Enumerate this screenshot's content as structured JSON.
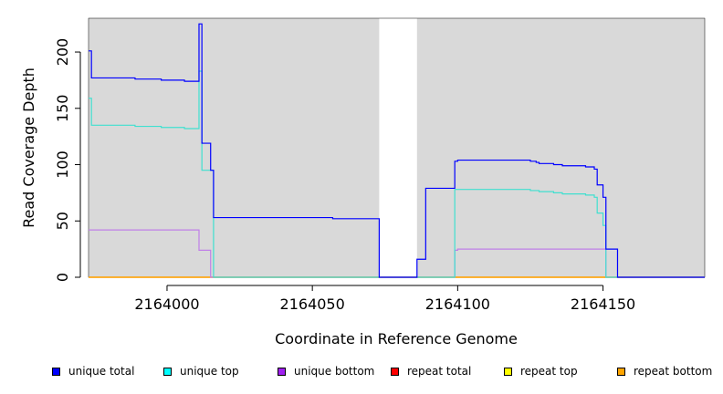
{
  "chart_data": {
    "type": "line",
    "title": "",
    "xlabel": "Coordinate in Reference Genome",
    "ylabel": "Read Coverage Depth",
    "xlim": [
      2163973,
      2164185
    ],
    "ylim": [
      0,
      230
    ],
    "x_ticks": [
      2164000,
      2164050,
      2164100,
      2164150
    ],
    "y_ticks": [
      0,
      50,
      100,
      150,
      200
    ],
    "grid": false,
    "legend_position": "bottom",
    "background_color": "#d9d9d9",
    "shaded_regions": [
      [
        2163973,
        2164073
      ],
      [
        2164086,
        2164185
      ]
    ],
    "series": [
      {
        "name": "unique total",
        "color": "#0000ff",
        "line_color": "#0000ff",
        "points": [
          [
            2163973,
            201
          ],
          [
            2163974,
            201
          ],
          [
            2163974,
            177
          ],
          [
            2163989,
            177
          ],
          [
            2163989,
            176
          ],
          [
            2163998,
            176
          ],
          [
            2163998,
            175
          ],
          [
            2164006,
            175
          ],
          [
            2164006,
            174
          ],
          [
            2164011,
            174
          ],
          [
            2164011,
            225
          ],
          [
            2164012,
            225
          ],
          [
            2164012,
            119
          ],
          [
            2164015,
            119
          ],
          [
            2164015,
            95
          ],
          [
            2164016,
            95
          ],
          [
            2164016,
            53
          ],
          [
            2164057,
            53
          ],
          [
            2164057,
            52
          ],
          [
            2164073,
            52
          ],
          [
            2164073,
            0
          ],
          [
            2164086,
            0
          ],
          [
            2164086,
            16
          ],
          [
            2164089,
            16
          ],
          [
            2164089,
            79
          ],
          [
            2164099,
            79
          ],
          [
            2164099,
            103
          ],
          [
            2164100,
            103
          ],
          [
            2164100,
            104
          ],
          [
            2164125,
            104
          ],
          [
            2164125,
            103
          ],
          [
            2164127,
            103
          ],
          [
            2164127,
            102
          ],
          [
            2164128,
            102
          ],
          [
            2164128,
            101
          ],
          [
            2164133,
            101
          ],
          [
            2164133,
            100
          ],
          [
            2164136,
            100
          ],
          [
            2164136,
            99
          ],
          [
            2164144,
            99
          ],
          [
            2164144,
            98
          ],
          [
            2164147,
            98
          ],
          [
            2164147,
            96
          ],
          [
            2164148,
            96
          ],
          [
            2164148,
            82
          ],
          [
            2164150,
            82
          ],
          [
            2164150,
            71
          ],
          [
            2164151,
            71
          ],
          [
            2164151,
            25
          ],
          [
            2164155,
            25
          ],
          [
            2164155,
            0
          ],
          [
            2164185,
            0
          ]
        ]
      },
      {
        "name": "unique top",
        "color": "#00ffff",
        "line_color": "#40e0d0",
        "points": [
          [
            2163973,
            159
          ],
          [
            2163974,
            159
          ],
          [
            2163974,
            135
          ],
          [
            2163989,
            135
          ],
          [
            2163989,
            134
          ],
          [
            2163998,
            134
          ],
          [
            2163998,
            133
          ],
          [
            2164006,
            133
          ],
          [
            2164006,
            132
          ],
          [
            2164011,
            132
          ],
          [
            2164011,
            183
          ],
          [
            2164012,
            183
          ],
          [
            2164012,
            95
          ],
          [
            2164016,
            95
          ],
          [
            2164016,
            0
          ],
          [
            2164099,
            0
          ],
          [
            2164099,
            78
          ],
          [
            2164125,
            78
          ],
          [
            2164125,
            77
          ],
          [
            2164128,
            77
          ],
          [
            2164128,
            76
          ],
          [
            2164133,
            76
          ],
          [
            2164133,
            75
          ],
          [
            2164136,
            75
          ],
          [
            2164136,
            74
          ],
          [
            2164144,
            74
          ],
          [
            2164144,
            73
          ],
          [
            2164147,
            73
          ],
          [
            2164147,
            71
          ],
          [
            2164148,
            71
          ],
          [
            2164148,
            57
          ],
          [
            2164150,
            57
          ],
          [
            2164150,
            46
          ],
          [
            2164151,
            46
          ],
          [
            2164151,
            0
          ],
          [
            2164185,
            0
          ]
        ]
      },
      {
        "name": "unique bottom",
        "color": "#a020f0",
        "line_color": "#c080e8",
        "points": [
          [
            2163973,
            42
          ],
          [
            2164011,
            42
          ],
          [
            2164011,
            24
          ],
          [
            2164015,
            24
          ],
          [
            2164015,
            0
          ],
          [
            2164099,
            0
          ],
          [
            2164099,
            24
          ],
          [
            2164100,
            24
          ],
          [
            2164100,
            25
          ],
          [
            2164151,
            25
          ],
          [
            2164151,
            0
          ],
          [
            2164185,
            0
          ]
        ]
      },
      {
        "name": "repeat total",
        "color": "#ff0000",
        "line_color": "#ff0000",
        "points": [
          [
            2163973,
            0
          ],
          [
            2164185,
            0
          ]
        ]
      },
      {
        "name": "repeat top",
        "color": "#ffff00",
        "line_color": "#ffff00",
        "points": [
          [
            2163973,
            0
          ],
          [
            2164185,
            0
          ]
        ]
      },
      {
        "name": "repeat bottom",
        "color": "#ffa500",
        "line_color": "#ffa500",
        "points": [
          [
            2163973,
            0
          ],
          [
            2164185,
            0
          ]
        ]
      }
    ]
  }
}
